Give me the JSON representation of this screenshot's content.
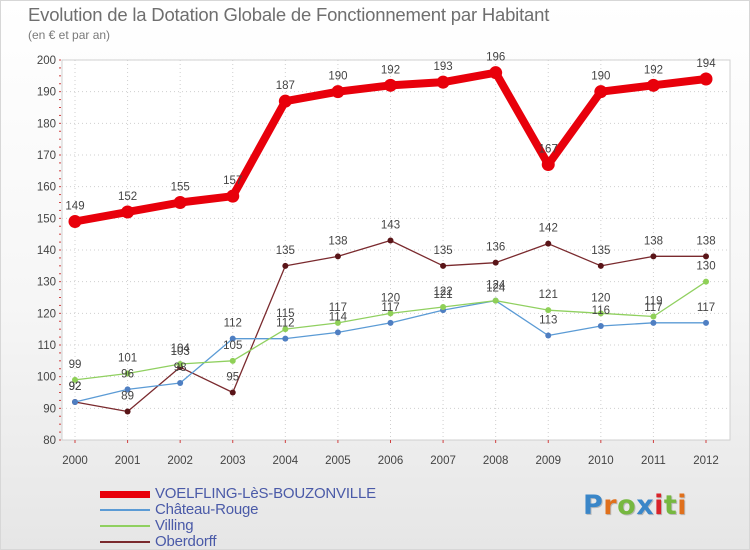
{
  "title": "Evolution de la Dotation Globale de Fonctionnement par Habitant",
  "subtitle": "(en € et par an)",
  "logo": {
    "text": "Proxiti",
    "colors": [
      "#3a86c8",
      "#e0701c",
      "#77b840",
      "#3a86c8",
      "#d9232a",
      "#77b840",
      "#e0701c"
    ]
  },
  "chart_data": {
    "type": "line",
    "title": "Evolution de la Dotation Globale de Fonctionnement par Habitant",
    "subtitle": "(en € et par an)",
    "x": [
      "2000",
      "2001",
      "2002",
      "2003",
      "2004",
      "2005",
      "2006",
      "2007",
      "2008",
      "2009",
      "2010",
      "2011",
      "2012"
    ],
    "ylim": [
      80,
      200
    ],
    "yticks": [
      80,
      90,
      100,
      110,
      120,
      130,
      140,
      150,
      160,
      170,
      180,
      190,
      200
    ],
    "series": [
      {
        "name": "VOELFLING-LèS-BOUZONVILLE",
        "color": "#e8000b",
        "emphasis": true,
        "values": [
          149,
          152,
          155,
          157,
          187,
          190,
          192,
          193,
          196,
          167,
          190,
          192,
          194
        ],
        "labels": [
          "149",
          "152",
          "155",
          "157",
          "187",
          "190",
          "192",
          "193",
          "196",
          "167",
          "190",
          "192",
          "194"
        ]
      },
      {
        "name": "Château-Rouge",
        "color": "#5b9bd5",
        "marker": "#4f7fc2",
        "values": [
          92,
          96,
          98,
          112,
          112,
          114,
          117,
          121,
          124,
          113,
          116,
          117,
          117
        ],
        "labels": [
          "92",
          "96",
          "98",
          "112",
          "112",
          "114",
          "117",
          "121",
          "124",
          "113",
          "116",
          "117",
          "117"
        ]
      },
      {
        "name": "Villing",
        "color": "#90d060",
        "marker": "#8fd057",
        "values": [
          99,
          101,
          104,
          105,
          115,
          117,
          120,
          122,
          124,
          121,
          120,
          119,
          130
        ],
        "labels": [
          "99",
          "101",
          "104",
          "105",
          "115",
          "117",
          "120",
          "122",
          "124",
          "121",
          "120",
          "119",
          "130"
        ]
      },
      {
        "name": "Oberdorff",
        "color": "#7a2a2e",
        "marker": "#5a1518",
        "values": [
          92,
          89,
          103,
          95,
          135,
          138,
          143,
          135,
          136,
          142,
          135,
          138,
          138
        ],
        "labels": [
          "92",
          "89",
          "103",
          "95",
          "135",
          "138",
          "143",
          "135",
          "136",
          "142",
          "135",
          "138",
          "138"
        ]
      }
    ]
  }
}
